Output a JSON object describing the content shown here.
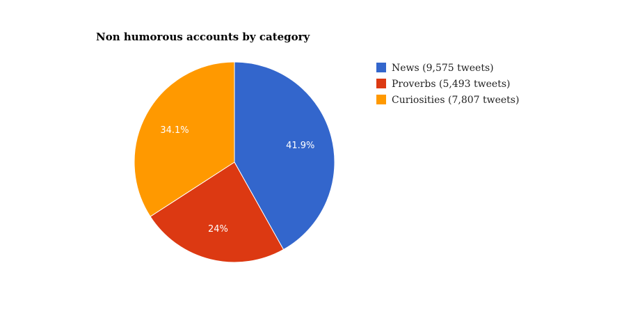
{
  "chart_data": {
    "type": "pie",
    "title": "Non humorous accounts by category",
    "legend_position": "right",
    "slices": [
      {
        "name": "News",
        "value": 9575,
        "legend_label": "News (9,575 tweets)",
        "percent_label": "41.9%",
        "color": "#3366cc"
      },
      {
        "name": "Proverbs",
        "value": 5493,
        "legend_label": "Proverbs (5,493 tweets)",
        "percent_label": "24%",
        "color": "#dc3912"
      },
      {
        "name": "Curiosities",
        "value": 7807,
        "legend_label": "Curiosities (7,807 tweets)",
        "percent_label": "34.1%",
        "color": "#ff9900"
      }
    ]
  }
}
